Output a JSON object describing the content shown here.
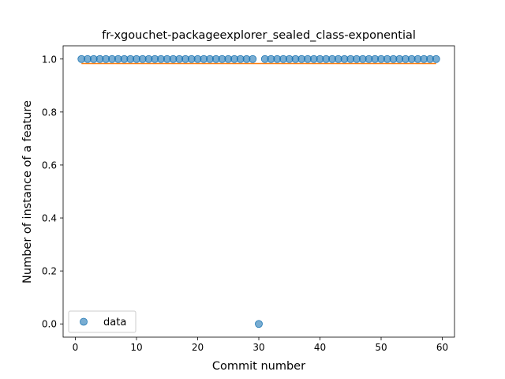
{
  "chart_data": {
    "type": "scatter",
    "title": "fr-xgouchet-packageexplorer_sealed_class-exponential",
    "xlabel": "Commit number",
    "ylabel": "Number of instance of a feature",
    "xlim": [
      -2,
      62
    ],
    "ylim": [
      -0.05,
      1.05
    ],
    "xticks": [
      0,
      10,
      20,
      30,
      40,
      50,
      60
    ],
    "yticks": [
      0.0,
      0.2,
      0.4,
      0.6,
      0.8,
      1.0
    ],
    "xtick_labels": [
      "0",
      "10",
      "20",
      "30",
      "40",
      "50",
      "60"
    ],
    "ytick_labels": [
      "0.0",
      "0.2",
      "0.4",
      "0.6",
      "0.8",
      "1.0"
    ],
    "grid": false,
    "legend": {
      "position": "lower-left",
      "entries": [
        "data"
      ]
    },
    "series": [
      {
        "name": "data",
        "kind": "scatter",
        "color": "#1f77b4",
        "x": [
          1,
          2,
          3,
          4,
          5,
          6,
          7,
          8,
          9,
          10,
          11,
          12,
          13,
          14,
          15,
          16,
          17,
          18,
          19,
          20,
          21,
          22,
          23,
          24,
          25,
          26,
          27,
          28,
          29,
          30,
          31,
          32,
          33,
          34,
          35,
          36,
          37,
          38,
          39,
          40,
          41,
          42,
          43,
          44,
          45,
          46,
          47,
          48,
          49,
          50,
          51,
          52,
          53,
          54,
          55,
          56,
          57,
          58,
          59
        ],
        "y": [
          1,
          1,
          1,
          1,
          1,
          1,
          1,
          1,
          1,
          1,
          1,
          1,
          1,
          1,
          1,
          1,
          1,
          1,
          1,
          1,
          1,
          1,
          1,
          1,
          1,
          1,
          1,
          1,
          1,
          0,
          1,
          1,
          1,
          1,
          1,
          1,
          1,
          1,
          1,
          1,
          1,
          1,
          1,
          1,
          1,
          1,
          1,
          1,
          1,
          1,
          1,
          1,
          1,
          1,
          1,
          1,
          1,
          1,
          1
        ]
      },
      {
        "kind": "line",
        "color": "#ff7f0e",
        "x": [
          1,
          59
        ],
        "y": [
          0.983,
          0.983
        ]
      }
    ]
  }
}
